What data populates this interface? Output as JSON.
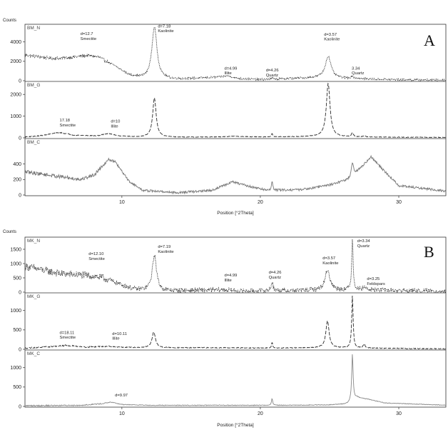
{
  "chart_data": [
    {
      "type": "line",
      "panel_letter": "A",
      "counts_label": "Counts",
      "xlabel": "Position [°2Theta]",
      "xlim": [
        3,
        33.4
      ],
      "x_ticks": [
        10,
        20,
        30
      ],
      "x_tick_labels": [
        "10",
        "20",
        "30"
      ],
      "grid": false,
      "series": [
        {
          "name": "BM_N",
          "dash": "1.2,1.1",
          "color": "#2a2a2a",
          "ylim": [
            0,
            5600
          ],
          "y_ticks": [
            0,
            2000,
            4000
          ],
          "y_tick_labels": [
            "0",
            "2000",
            "4000"
          ],
          "baseline": [
            [
              3,
              2650
            ],
            [
              5,
              2300
            ],
            [
              6,
              2350
            ],
            [
              7.5,
              2600
            ],
            [
              8.3,
              2450
            ],
            [
              9.5,
              1500
            ],
            [
              10.5,
              600
            ],
            [
              11.5,
              250
            ],
            [
              14,
              150
            ],
            [
              17.5,
              400
            ],
            [
              18.5,
              200
            ],
            [
              20,
              120
            ],
            [
              24,
              300
            ],
            [
              27,
              200
            ],
            [
              30,
              100
            ],
            [
              33.4,
              60
            ]
          ],
          "peaks": [
            [
              12.35,
              5350,
              0.22
            ],
            [
              24.9,
              2250,
              0.25
            ],
            [
              26.65,
              250,
              0.1
            ],
            [
              20.85,
              100,
              0.06
            ],
            [
              17.7,
              120,
              0.3
            ]
          ],
          "noise": 200,
          "annotations": [
            {
              "x": 7.0,
              "y": 4700,
              "lines": [
                "d=12.7",
                "Smectite"
              ]
            },
            {
              "x": 12.6,
              "y": 5500,
              "lines": [
                "d=7.18",
                "Kaolinite"
              ]
            },
            {
              "x": 17.4,
              "y": 1150,
              "lines": [
                "d=4.99",
                "Illite"
              ]
            },
            {
              "x": 20.4,
              "y": 950,
              "lines": [
                "d=4.26",
                "Quartz"
              ]
            },
            {
              "x": 24.6,
              "y": 4650,
              "lines": [
                "d=3.57",
                "Kaolinite"
              ]
            },
            {
              "x": 26.6,
              "y": 1150,
              "lines": [
                "3.34",
                "Quartz"
              ]
            }
          ]
        },
        {
          "name": "BM_G",
          "dash": "5,2",
          "color": "#2a2a2a",
          "ylim": [
            0,
            2500
          ],
          "y_ticks": [
            0,
            1000,
            2000
          ],
          "y_tick_labels": [
            "0",
            "1000",
            "2000"
          ],
          "baseline": [
            [
              3,
              40
            ],
            [
              4,
              90
            ],
            [
              5.5,
              250
            ],
            [
              6.5,
              130
            ],
            [
              8.2,
              90
            ],
            [
              9,
              200
            ],
            [
              9.8,
              90
            ],
            [
              11,
              40
            ],
            [
              14,
              30
            ],
            [
              17,
              40
            ],
            [
              18,
              70
            ],
            [
              20,
              40
            ],
            [
              24,
              60
            ],
            [
              27,
              40
            ],
            [
              33.4,
              20
            ]
          ],
          "peaks": [
            [
              12.35,
              1800,
              0.15
            ],
            [
              24.9,
              2450,
              0.16
            ],
            [
              26.65,
              180,
              0.08
            ],
            [
              20.85,
              150,
              0.05
            ],
            [
              27.5,
              60,
              0.08
            ]
          ],
          "noise": 25,
          "annotations": [
            {
              "x": 5.5,
              "y": 750,
              "lines": [
                "17.18",
                "Smectite"
              ]
            },
            {
              "x": 9.2,
              "y": 700,
              "lines": [
                "d=10",
                "Illite"
              ]
            }
          ]
        },
        {
          "name": "BM_C",
          "dash": "",
          "color": "#777777",
          "ylim": [
            0,
            700
          ],
          "y_ticks": [
            0,
            200,
            400
          ],
          "y_tick_labels": [
            "0",
            "200",
            "400"
          ],
          "baseline": [
            [
              3,
              300
            ],
            [
              5,
              250
            ],
            [
              7,
              200
            ],
            [
              8,
              260
            ],
            [
              9,
              460
            ],
            [
              9.5,
              430
            ],
            [
              10.5,
              180
            ],
            [
              11.5,
              60
            ],
            [
              14,
              30
            ],
            [
              16.5,
              60
            ],
            [
              18,
              170
            ],
            [
              19,
              120
            ],
            [
              20.5,
              60
            ],
            [
              23,
              70
            ],
            [
              25,
              130
            ],
            [
              26.5,
              210
            ],
            [
              28,
              490
            ],
            [
              29,
              300
            ],
            [
              30,
              120
            ],
            [
              33.4,
              50
            ]
          ],
          "peaks": [
            [
              20.85,
              130,
              0.05
            ],
            [
              26.65,
              170,
              0.1
            ]
          ],
          "noise": 30,
          "annotations": []
        }
      ]
    },
    {
      "type": "line",
      "panel_letter": "B",
      "counts_label": "Counts",
      "xlabel": "Position [°2Theta]",
      "xlim": [
        3,
        33.4
      ],
      "x_ticks": [
        10,
        20,
        30
      ],
      "x_tick_labels": [
        "10",
        "20",
        "30"
      ],
      "grid": false,
      "series": [
        {
          "name": "MK_N",
          "dash": "1.2,1.1",
          "color": "#2a2a2a",
          "ylim": [
            0,
            1850
          ],
          "y_ticks": [
            0,
            500,
            1000,
            1500
          ],
          "y_tick_labels": [
            "0",
            "500",
            "1000",
            "1500"
          ],
          "baseline": [
            [
              3,
              900
            ],
            [
              4,
              800
            ],
            [
              5.5,
              650
            ],
            [
              7,
              600
            ],
            [
              8,
              560
            ],
            [
              9,
              440
            ],
            [
              10,
              250
            ],
            [
              11,
              90
            ],
            [
              13,
              40
            ],
            [
              17.5,
              80
            ],
            [
              18.5,
              40
            ],
            [
              22,
              50
            ],
            [
              25,
              80
            ],
            [
              28,
              80
            ],
            [
              33.4,
              20
            ]
          ],
          "peaks": [
            [
              12.35,
              1250,
              0.18
            ],
            [
              24.85,
              720,
              0.2
            ],
            [
              26.65,
              1850,
              0.06
            ],
            [
              20.85,
              320,
              0.08
            ],
            [
              27.5,
              130,
              0.1
            ]
          ],
          "noise": 160,
          "annotations": [
            {
              "x": 7.6,
              "y": 1300,
              "lines": [
                "d=12.10",
                "Smectite"
              ]
            },
            {
              "x": 12.6,
              "y": 1550,
              "lines": [
                "d=7.19",
                "Kaolinite"
              ]
            },
            {
              "x": 17.4,
              "y": 550,
              "lines": [
                "d=4.99",
                "Illite"
              ]
            },
            {
              "x": 20.6,
              "y": 650,
              "lines": [
                "d=4.26",
                "Quartz"
              ]
            },
            {
              "x": 24.5,
              "y": 1150,
              "lines": [
                "d=3.57",
                "Kaolinite"
              ]
            },
            {
              "x": 27.0,
              "y": 1750,
              "lines": [
                "d=3.34",
                "Quartz"
              ]
            },
            {
              "x": 27.7,
              "y": 420,
              "lines": [
                "d=3.25",
                "Feldspars"
              ]
            }
          ]
        },
        {
          "name": "MK_G",
          "dash": "5,2",
          "color": "#2a2a2a",
          "ylim": [
            0,
            1400
          ],
          "y_ticks": [
            0,
            500,
            1000
          ],
          "y_tick_labels": [
            "0",
            "500",
            "1000"
          ],
          "baseline": [
            [
              3,
              30
            ],
            [
              4.5,
              60
            ],
            [
              6,
              100
            ],
            [
              7.5,
              60
            ],
            [
              9,
              80
            ],
            [
              10,
              50
            ],
            [
              12,
              40
            ],
            [
              18,
              40
            ],
            [
              20,
              30
            ],
            [
              24,
              40
            ],
            [
              28,
              30
            ],
            [
              33.4,
              10
            ]
          ],
          "peaks": [
            [
              12.3,
              400,
              0.15
            ],
            [
              24.85,
              700,
              0.14
            ],
            [
              26.65,
              1350,
              0.06
            ],
            [
              20.85,
              150,
              0.05
            ],
            [
              27.5,
              100,
              0.08
            ]
          ],
          "noise": 20,
          "annotations": [
            {
              "x": 5.5,
              "y": 400,
              "lines": [
                "d=18.11",
                "Smectite"
              ]
            },
            {
              "x": 9.3,
              "y": 370,
              "lines": [
                "d=10.11",
                "Illite"
              ]
            }
          ]
        },
        {
          "name": "MK_C",
          "dash": "",
          "color": "#888888",
          "ylim": [
            0,
            1400
          ],
          "y_ticks": [
            0,
            500,
            1000
          ],
          "y_tick_labels": [
            "0",
            "500",
            "1000"
          ],
          "baseline": [
            [
              3,
              20
            ],
            [
              7,
              30
            ],
            [
              8.5,
              70
            ],
            [
              9.2,
              110
            ],
            [
              10,
              50
            ],
            [
              12,
              30
            ],
            [
              18,
              30
            ],
            [
              22,
              30
            ],
            [
              25,
              40
            ],
            [
              26.3,
              70
            ],
            [
              27,
              230
            ],
            [
              28,
              170
            ],
            [
              29,
              90
            ],
            [
              33.4,
              30
            ]
          ],
          "peaks": [
            [
              20.85,
              180,
              0.05
            ],
            [
              26.65,
              1200,
              0.06
            ]
          ],
          "noise": 18,
          "annotations": [
            {
              "x": 9.5,
              "y": 260,
              "lines": [
                "d=9.97"
              ]
            }
          ]
        }
      ]
    }
  ]
}
